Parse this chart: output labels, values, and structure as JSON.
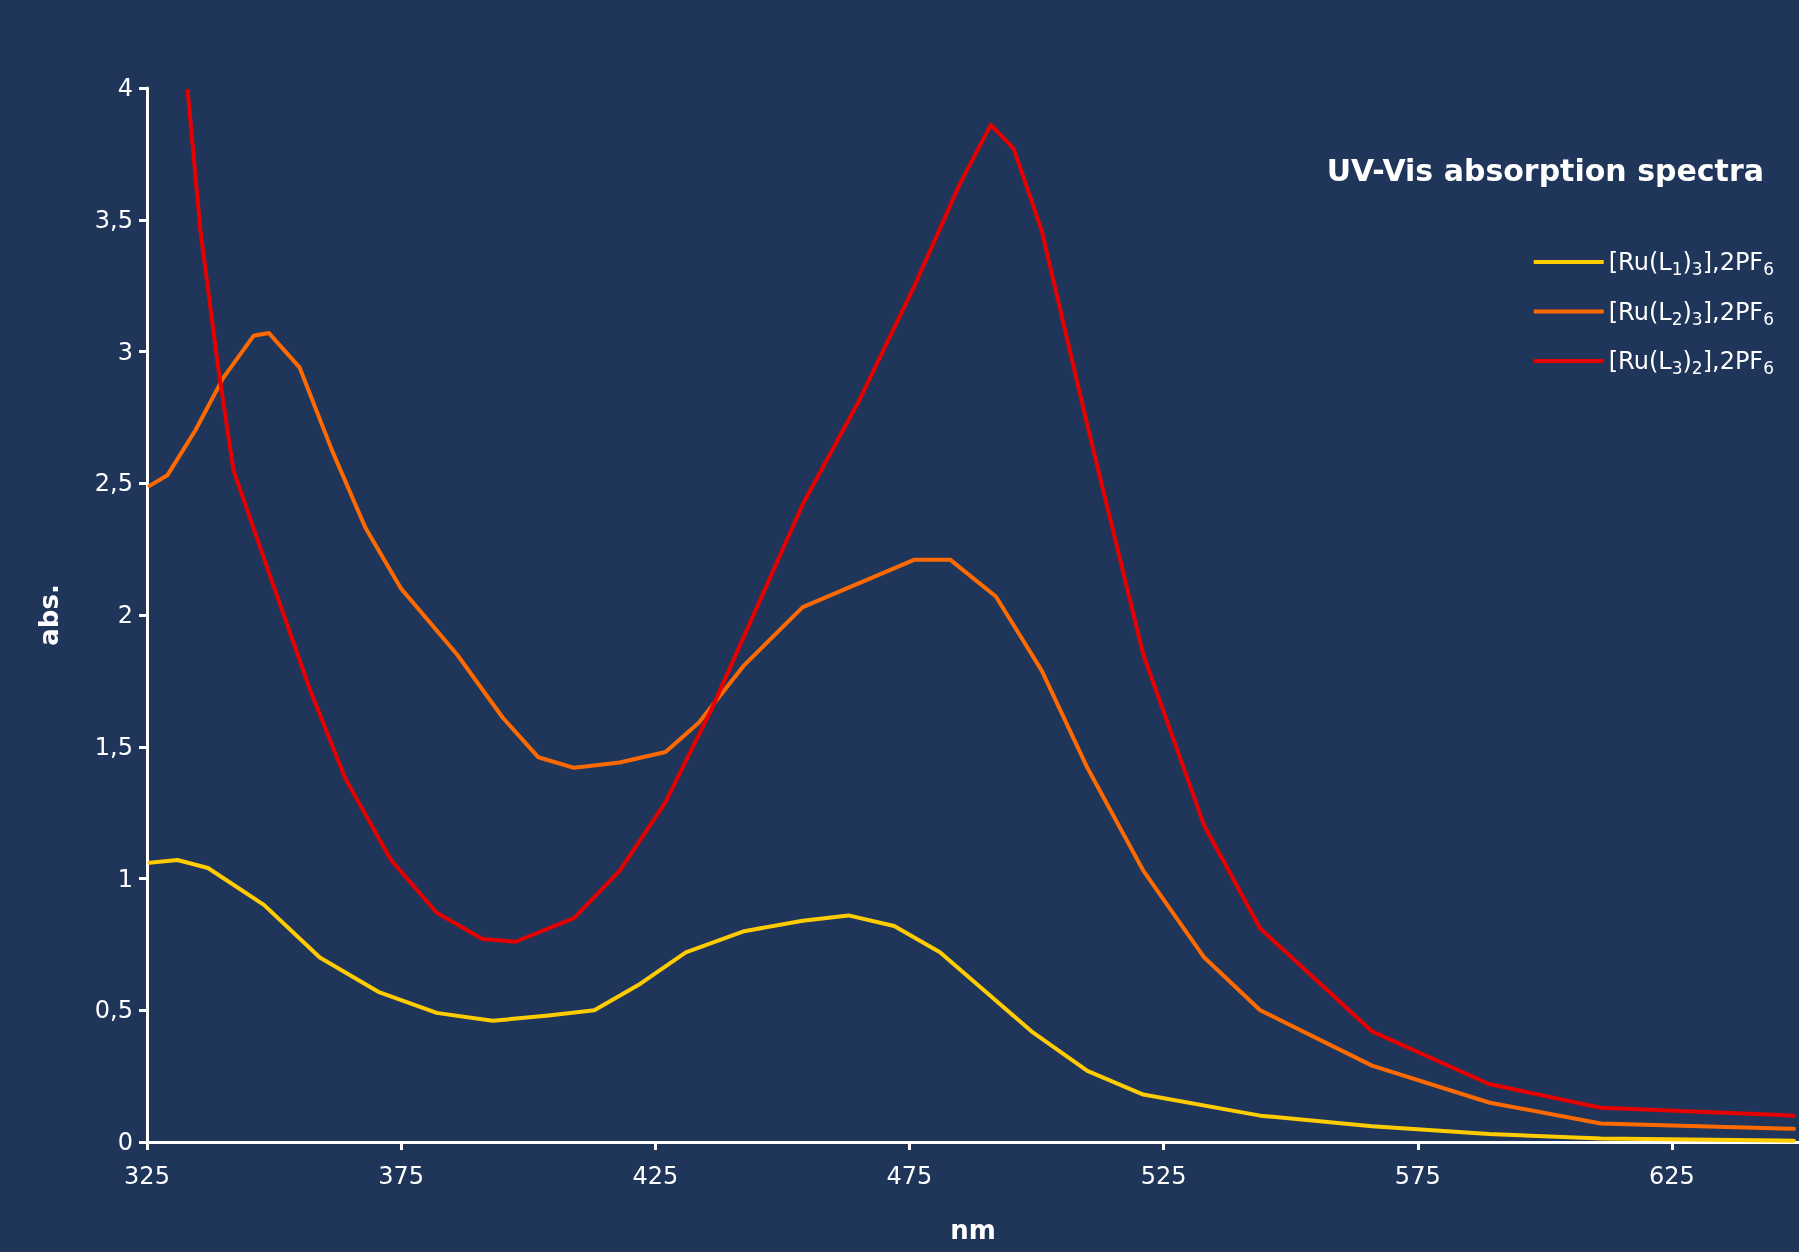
{
  "chart_data": {
    "type": "line",
    "title": "UV-Vis absorption spectra",
    "xlabel": "nm",
    "ylabel": "abs.",
    "xlim": [
      325,
      650
    ],
    "xticks": [
      325,
      375,
      425,
      475,
      525,
      575,
      625
    ],
    "ylim": [
      0,
      4
    ],
    "yticks": [
      0,
      {
        "value": 0.5,
        "label": "0,5"
      },
      1,
      {
        "value": 1.5,
        "label": "1,5"
      },
      2,
      {
        "value": 2.5,
        "label": "2,5"
      },
      3,
      {
        "value": 3.5,
        "label": "3,5"
      },
      4
    ],
    "grid": false,
    "legend": "top right",
    "marker": "none",
    "line_style": "solid",
    "series": [
      {
        "name": "[Ru(L$_{1}$)$_{3}$],2PF$_{6}$",
        "color": "#ffcc00",
        "x": [
          325.5,
          331,
          337,
          348,
          359,
          370.5,
          382,
          393,
          404,
          413,
          422,
          431,
          442.5,
          454,
          463,
          472,
          481,
          490,
          499,
          510,
          521,
          544,
          566,
          589,
          611,
          649
        ],
        "values": [
          1.06,
          1.07,
          1.04,
          0.9,
          0.7,
          0.57,
          0.49,
          0.46,
          0.48,
          0.5,
          0.6,
          0.72,
          0.8,
          0.84,
          0.86,
          0.82,
          0.72,
          0.57,
          0.42,
          0.27,
          0.18,
          0.1,
          0.06,
          0.03,
          0.013,
          0.005
        ]
      },
      {
        "name": "[Ru(L$_{2}$)$_{3}$],2PF$_{6}$",
        "color": "#ff6a00",
        "x": [
          325.5,
          329,
          334.5,
          340,
          346,
          349,
          355,
          361.5,
          368,
          375,
          386,
          395,
          402,
          409,
          418,
          427,
          433.5,
          442.5,
          454,
          465,
          476,
          483,
          492,
          501,
          510,
          521,
          533,
          544,
          566,
          589,
          611,
          649
        ],
        "values": [
          2.49,
          2.53,
          2.7,
          2.9,
          3.06,
          3.07,
          2.94,
          2.62,
          2.33,
          2.1,
          1.85,
          1.61,
          1.46,
          1.42,
          1.44,
          1.48,
          1.59,
          1.81,
          2.03,
          2.12,
          2.21,
          2.21,
          2.07,
          1.79,
          1.42,
          1.03,
          0.7,
          0.5,
          0.29,
          0.15,
          0.07,
          0.05
        ]
      },
      {
        "name": "[Ru(L$_{3}$)$_{2}$],2PF$_{6}$",
        "color": "#e60000",
        "x": [
          333,
          335.5,
          339,
          342,
          349,
          357,
          364,
          373,
          382,
          391,
          397.5,
          409,
          418,
          427,
          436,
          445,
          454,
          465,
          476,
          485,
          491,
          495.5,
          501,
          510,
          521,
          533,
          544,
          566,
          589,
          611,
          649
        ],
        "values": [
          3.99,
          3.46,
          2.94,
          2.55,
          2.16,
          1.72,
          1.38,
          1.07,
          0.87,
          0.77,
          0.76,
          0.85,
          1.03,
          1.29,
          1.64,
          2.03,
          2.42,
          2.81,
          3.25,
          3.64,
          3.86,
          3.77,
          3.46,
          2.72,
          1.85,
          1.2,
          0.81,
          0.42,
          0.22,
          0.13,
          0.1
        ]
      }
    ]
  }
}
